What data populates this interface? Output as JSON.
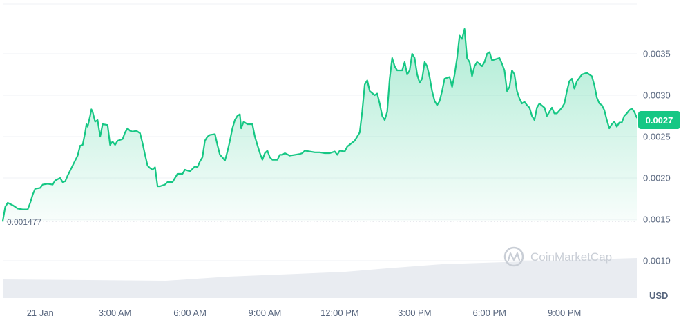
{
  "watermark": "CoinMarketCap",
  "colors": {
    "line": "#16c784",
    "grid": "#eff2f5",
    "text": "#58667e",
    "volume": "#e8ebf0"
  },
  "chart_data": {
    "type": "line",
    "currency": "USD",
    "open_value": 0.001477,
    "open_label": "0.001477",
    "current_value": 0.0027,
    "current_label": "0.0027",
    "ylim": [
      0.00055,
      0.0041
    ],
    "y_ticks": [
      0.001,
      0.0015,
      0.002,
      0.0025,
      0.003,
      0.0035
    ],
    "y_tick_labels": [
      "0.0010",
      "0.0015",
      "0.0020",
      "0.0025",
      "0.0030",
      "0.0035"
    ],
    "xlim": [
      -1.5,
      23.9
    ],
    "x_ticks": [
      0,
      3,
      6,
      9,
      12,
      15,
      18,
      21
    ],
    "x_tick_labels": [
      "21 Jan",
      "3:00 AM",
      "6:00 AM",
      "9:00 AM",
      "12:00 PM",
      "3:00 PM",
      "6:00 PM",
      "9:00 PM"
    ],
    "series": [
      {
        "values": [
          [
            -1.5,
            0.00148
          ],
          [
            -1.4,
            0.00165
          ],
          [
            -1.3,
            0.0017
          ],
          [
            -1.1,
            0.00167
          ],
          [
            -0.9,
            0.00163
          ],
          [
            -0.7,
            0.00162
          ],
          [
            -0.5,
            0.00162
          ],
          [
            -0.4,
            0.0017
          ],
          [
            -0.3,
            0.0018
          ],
          [
            -0.2,
            0.00187
          ],
          [
            0.0,
            0.00188
          ],
          [
            0.1,
            0.00192
          ],
          [
            0.3,
            0.00193
          ],
          [
            0.5,
            0.00192
          ],
          [
            0.6,
            0.00197
          ],
          [
            0.8,
            0.002
          ],
          [
            0.9,
            0.00195
          ],
          [
            1.0,
            0.00196
          ],
          [
            1.1,
            0.00203
          ],
          [
            1.3,
            0.00215
          ],
          [
            1.5,
            0.00227
          ],
          [
            1.6,
            0.00239
          ],
          [
            1.7,
            0.0024
          ],
          [
            1.8,
            0.00255
          ],
          [
            1.85,
            0.00265
          ],
          [
            1.9,
            0.00262
          ],
          [
            2.0,
            0.00275
          ],
          [
            2.05,
            0.00283
          ],
          [
            2.1,
            0.0028
          ],
          [
            2.2,
            0.00268
          ],
          [
            2.3,
            0.0027
          ],
          [
            2.4,
            0.0025
          ],
          [
            2.5,
            0.00265
          ],
          [
            2.7,
            0.00264
          ],
          [
            2.8,
            0.0024
          ],
          [
            2.9,
            0.00244
          ],
          [
            3.0,
            0.0024
          ],
          [
            3.1,
            0.00245
          ],
          [
            3.3,
            0.00247
          ],
          [
            3.4,
            0.00255
          ],
          [
            3.5,
            0.0026
          ],
          [
            3.6,
            0.00257
          ],
          [
            3.7,
            0.00256
          ],
          [
            3.85,
            0.00257
          ],
          [
            4.0,
            0.00254
          ],
          [
            4.1,
            0.00242
          ],
          [
            4.2,
            0.00228
          ],
          [
            4.3,
            0.00215
          ],
          [
            4.4,
            0.00212
          ],
          [
            4.5,
            0.0021
          ],
          [
            4.6,
            0.00213
          ],
          [
            4.7,
            0.0019
          ],
          [
            4.8,
            0.0019
          ],
          [
            5.0,
            0.00192
          ],
          [
            5.1,
            0.00195
          ],
          [
            5.3,
            0.00195
          ],
          [
            5.4,
            0.002
          ],
          [
            5.5,
            0.00205
          ],
          [
            5.7,
            0.00205
          ],
          [
            5.8,
            0.0021
          ],
          [
            6.0,
            0.00208
          ],
          [
            6.2,
            0.00214
          ],
          [
            6.3,
            0.00213
          ],
          [
            6.4,
            0.0022
          ],
          [
            6.5,
            0.00225
          ],
          [
            6.6,
            0.00245
          ],
          [
            6.7,
            0.0025
          ],
          [
            6.8,
            0.00252
          ],
          [
            7.0,
            0.00253
          ],
          [
            7.1,
            0.0024
          ],
          [
            7.2,
            0.00228
          ],
          [
            7.3,
            0.00225
          ],
          [
            7.4,
            0.00221
          ],
          [
            7.5,
            0.00232
          ],
          [
            7.6,
            0.00245
          ],
          [
            7.7,
            0.0026
          ],
          [
            7.8,
            0.0027
          ],
          [
            7.9,
            0.00275
          ],
          [
            8.0,
            0.00277
          ],
          [
            8.05,
            0.0026
          ],
          [
            8.15,
            0.00268
          ],
          [
            8.3,
            0.00265
          ],
          [
            8.5,
            0.00265
          ],
          [
            8.6,
            0.0025
          ],
          [
            8.7,
            0.0024
          ],
          [
            8.8,
            0.0023
          ],
          [
            8.9,
            0.00222
          ],
          [
            9.0,
            0.0023
          ],
          [
            9.1,
            0.00233
          ],
          [
            9.2,
            0.00225
          ],
          [
            9.3,
            0.00222
          ],
          [
            9.5,
            0.00222
          ],
          [
            9.6,
            0.00228
          ],
          [
            9.7,
            0.00228
          ],
          [
            9.8,
            0.0023
          ],
          [
            10.0,
            0.00227
          ],
          [
            10.2,
            0.00228
          ],
          [
            10.4,
            0.00229
          ],
          [
            10.5,
            0.0023
          ],
          [
            10.6,
            0.00233
          ],
          [
            10.8,
            0.00232
          ],
          [
            11.0,
            0.00231
          ],
          [
            11.2,
            0.00231
          ],
          [
            11.4,
            0.0023
          ],
          [
            11.6,
            0.0023
          ],
          [
            11.8,
            0.00232
          ],
          [
            11.9,
            0.00228
          ],
          [
            12.0,
            0.00233
          ],
          [
            12.2,
            0.00232
          ],
          [
            12.3,
            0.00238
          ],
          [
            12.6,
            0.00245
          ],
          [
            12.8,
            0.00255
          ],
          [
            12.9,
            0.0028
          ],
          [
            13.0,
            0.00313
          ],
          [
            13.1,
            0.00318
          ],
          [
            13.2,
            0.00305
          ],
          [
            13.4,
            0.003
          ],
          [
            13.5,
            0.00302
          ],
          [
            13.6,
            0.0029
          ],
          [
            13.7,
            0.00275
          ],
          [
            13.8,
            0.0027
          ],
          [
            13.9,
            0.0028
          ],
          [
            14.0,
            0.0032
          ],
          [
            14.1,
            0.00345
          ],
          [
            14.2,
            0.00335
          ],
          [
            14.3,
            0.0033
          ],
          [
            14.5,
            0.0033
          ],
          [
            14.6,
            0.0034
          ],
          [
            14.7,
            0.00325
          ],
          [
            14.8,
            0.0033
          ],
          [
            14.9,
            0.0035
          ],
          [
            15.0,
            0.00345
          ],
          [
            15.1,
            0.00325
          ],
          [
            15.2,
            0.00315
          ],
          [
            15.3,
            0.0032
          ],
          [
            15.4,
            0.0034
          ],
          [
            15.5,
            0.00335
          ],
          [
            15.6,
            0.00322
          ],
          [
            15.7,
            0.00305
          ],
          [
            15.8,
            0.00293
          ],
          [
            15.9,
            0.00288
          ],
          [
            16.0,
            0.00293
          ],
          [
            16.1,
            0.00305
          ],
          [
            16.2,
            0.0032
          ],
          [
            16.4,
            0.00322
          ],
          [
            16.5,
            0.0031
          ],
          [
            16.6,
            0.00325
          ],
          [
            16.7,
            0.00345
          ],
          [
            16.8,
            0.00372
          ],
          [
            16.9,
            0.00368
          ],
          [
            17.0,
            0.0038
          ],
          [
            17.1,
            0.00345
          ],
          [
            17.2,
            0.0034
          ],
          [
            17.3,
            0.00323
          ],
          [
            17.4,
            0.00335
          ],
          [
            17.5,
            0.0034
          ],
          [
            17.6,
            0.00338
          ],
          [
            17.7,
            0.00335
          ],
          [
            17.8,
            0.0034
          ],
          [
            17.9,
            0.0035
          ],
          [
            18.0,
            0.00352
          ],
          [
            18.1,
            0.00342
          ],
          [
            18.3,
            0.00344
          ],
          [
            18.4,
            0.00345
          ],
          [
            18.5,
            0.00338
          ],
          [
            18.6,
            0.0033
          ],
          [
            18.7,
            0.00305
          ],
          [
            18.8,
            0.0031
          ],
          [
            18.9,
            0.0033
          ],
          [
            19.0,
            0.00325
          ],
          [
            19.1,
            0.00305
          ],
          [
            19.2,
            0.00296
          ],
          [
            19.3,
            0.0029
          ],
          [
            19.4,
            0.00292
          ],
          [
            19.5,
            0.00288
          ],
          [
            19.6,
            0.00285
          ],
          [
            19.7,
            0.00275
          ],
          [
            19.8,
            0.0027
          ],
          [
            19.9,
            0.00285
          ],
          [
            20.0,
            0.0029
          ],
          [
            20.2,
            0.00285
          ],
          [
            20.3,
            0.00275
          ],
          [
            20.4,
            0.0028
          ],
          [
            20.5,
            0.00285
          ],
          [
            20.6,
            0.00278
          ],
          [
            20.7,
            0.00278
          ],
          [
            20.9,
            0.00285
          ],
          [
            21.0,
            0.0029
          ],
          [
            21.1,
            0.00305
          ],
          [
            21.2,
            0.00317
          ],
          [
            21.3,
            0.0032
          ],
          [
            21.4,
            0.00308
          ],
          [
            21.5,
            0.00317
          ],
          [
            21.7,
            0.00325
          ],
          [
            21.9,
            0.00327
          ],
          [
            22.1,
            0.00323
          ],
          [
            22.2,
            0.00312
          ],
          [
            22.3,
            0.00297
          ],
          [
            22.4,
            0.0029
          ],
          [
            22.5,
            0.00288
          ],
          [
            22.6,
            0.00282
          ],
          [
            22.7,
            0.0027
          ],
          [
            22.8,
            0.0026
          ],
          [
            22.9,
            0.00265
          ],
          [
            23.0,
            0.00268
          ],
          [
            23.1,
            0.00262
          ],
          [
            23.2,
            0.00267
          ],
          [
            23.3,
            0.00267
          ],
          [
            23.4,
            0.00275
          ],
          [
            23.5,
            0.00278
          ],
          [
            23.6,
            0.00282
          ],
          [
            23.7,
            0.00284
          ],
          [
            23.8,
            0.0028
          ],
          [
            23.9,
            0.00273
          ]
        ]
      }
    ]
  }
}
